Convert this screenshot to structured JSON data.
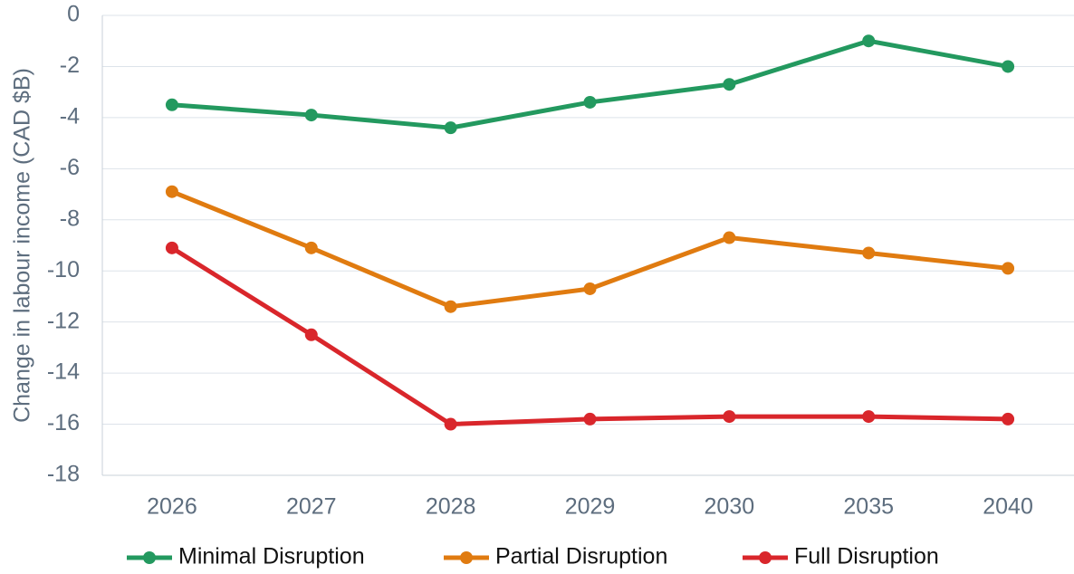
{
  "chart_data": {
    "type": "line",
    "y_label": "Change in labour income (CAD $B)",
    "categories": [
      "2026",
      "2027",
      "2028",
      "2029",
      "2030",
      "2035",
      "2040"
    ],
    "series": [
      {
        "name": "Minimal Disruption",
        "color": "#23995f",
        "values": [
          -3.5,
          -3.9,
          -4.4,
          -3.4,
          -2.7,
          -1.0,
          -2.0
        ]
      },
      {
        "name": "Partial Disruption",
        "color": "#e07b10",
        "values": [
          -6.9,
          -9.1,
          -11.4,
          -10.7,
          -8.7,
          -9.3,
          -9.9
        ]
      },
      {
        "name": "Full Disruption",
        "color": "#d9262b",
        "values": [
          -9.1,
          -12.5,
          -16.0,
          -15.8,
          -15.7,
          -15.7,
          -15.8
        ]
      }
    ],
    "ylim": [
      -18,
      0
    ],
    "yticks": [
      0,
      -2,
      -4,
      -6,
      -8,
      -10,
      -12,
      -14,
      -16,
      -18
    ],
    "grid": true,
    "legend": "bottom"
  }
}
